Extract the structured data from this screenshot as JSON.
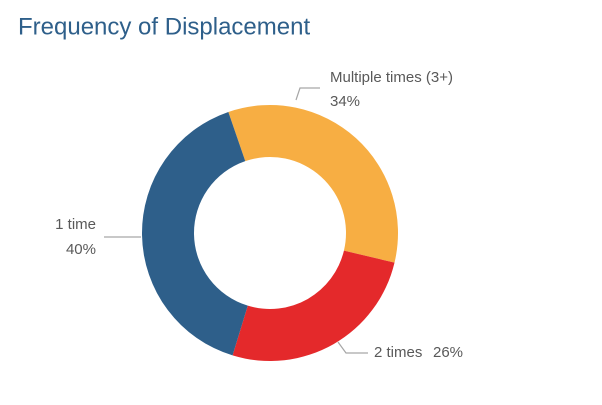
{
  "chart_data": {
    "type": "donut",
    "title": "Frequency of Displacement",
    "categories": [
      "Multiple times (3+)",
      "2 times",
      "1 time"
    ],
    "values": [
      34,
      26,
      40
    ],
    "value_labels": [
      "34%",
      "26%",
      "40%"
    ],
    "colors": [
      "#f7ae43",
      "#e4292b",
      "#2e5f8a"
    ]
  }
}
